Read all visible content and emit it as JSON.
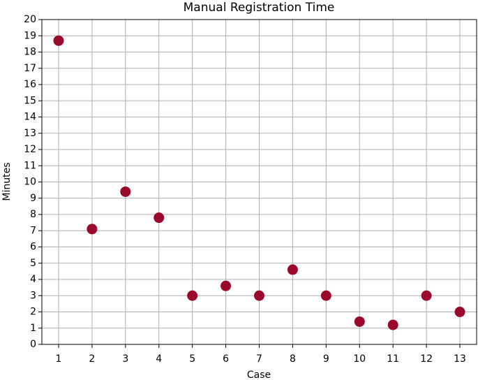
{
  "chart_data": {
    "type": "scatter",
    "title": "Manual Registration Time",
    "x_label": "Case",
    "y_label": "Minutes",
    "x": [
      1,
      2,
      3,
      4,
      5,
      6,
      7,
      8,
      9,
      10,
      11,
      12,
      13
    ],
    "series": [
      {
        "color": "#9b0a2a",
        "values": [
          18.7,
          7.1,
          9.4,
          7.8,
          3.0,
          3.6,
          3.0,
          4.6,
          3.0,
          1.4,
          1.2,
          3.0,
          2.0
        ]
      }
    ],
    "xlim": [
      0.5,
      13.5
    ],
    "xticks": [
      1,
      2,
      3,
      4,
      5,
      6,
      7,
      8,
      9,
      10,
      11,
      12,
      13
    ],
    "ylim": [
      0,
      20
    ],
    "yticks": [
      0,
      1,
      2,
      3,
      4,
      5,
      6,
      7,
      8,
      9,
      10,
      11,
      12,
      13,
      14,
      15,
      16,
      17,
      18,
      19,
      20
    ],
    "grid": true
  }
}
